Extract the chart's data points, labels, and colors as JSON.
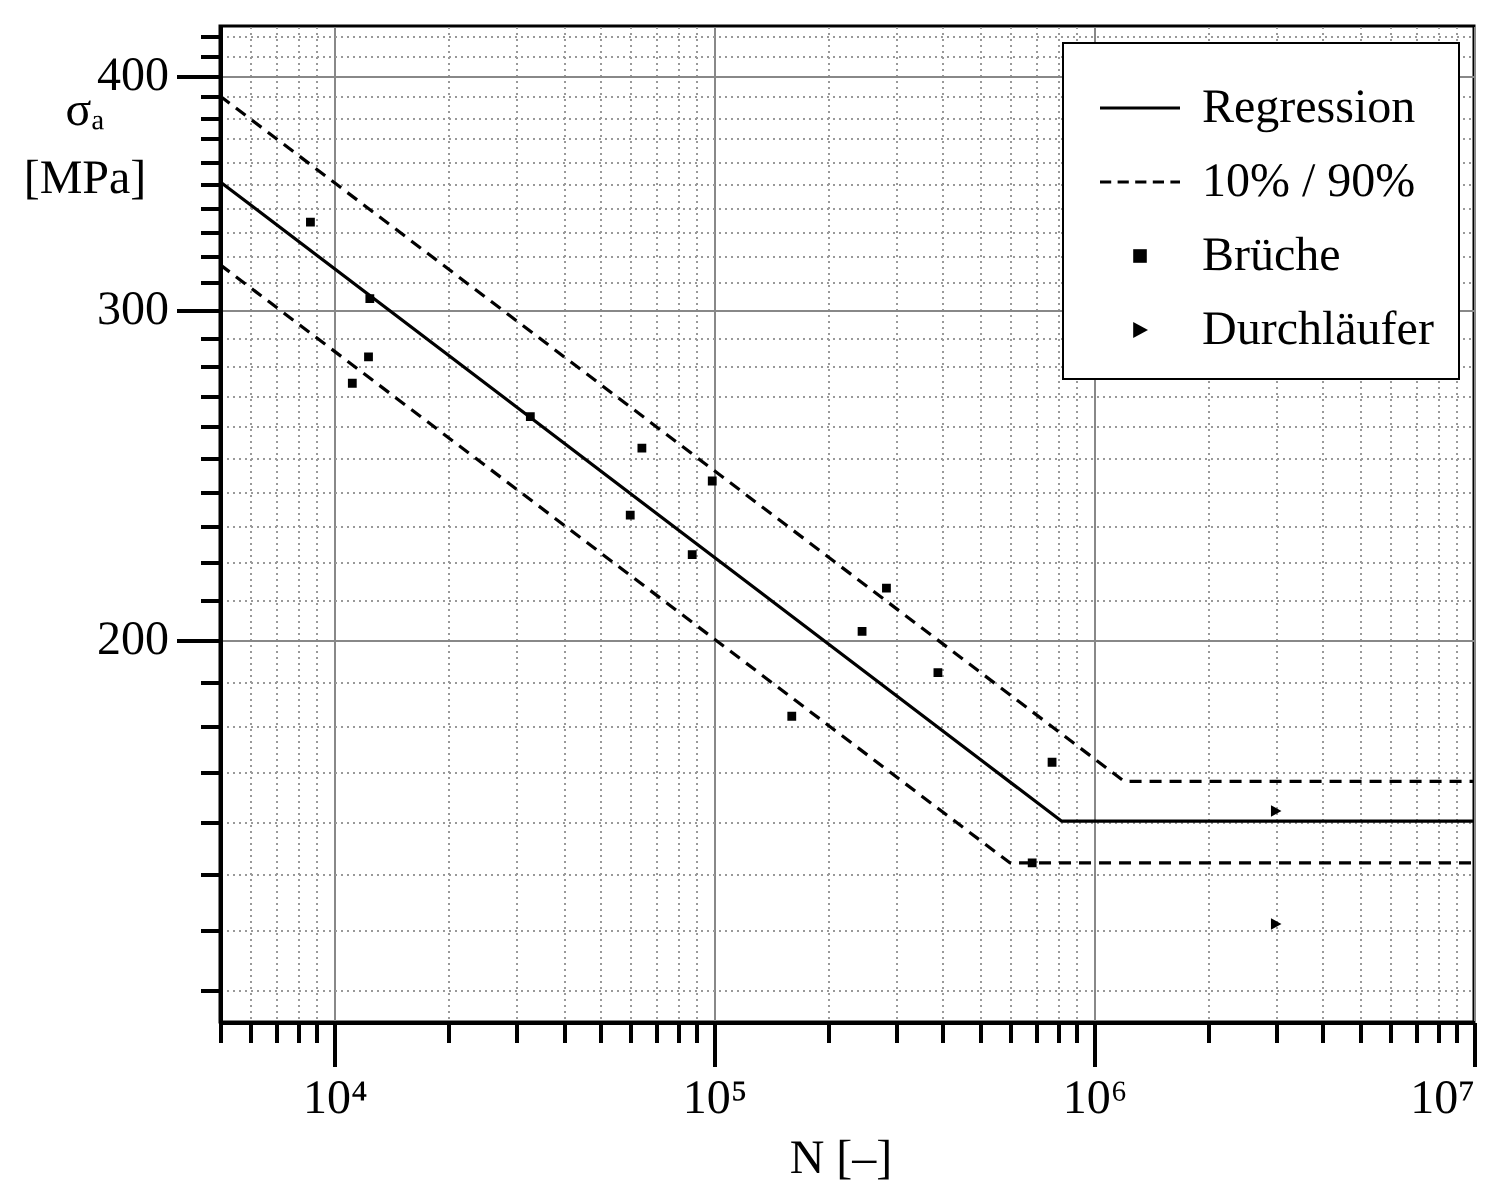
{
  "chart_data": {
    "type": "scatter",
    "xlabel": "N [–]",
    "ylabel": "σₐ\n[MPa]",
    "log": "xy",
    "grid": true,
    "legend": "top right",
    "xlim": [
      5000,
      10000000
    ],
    "ylim": [
      125,
      425
    ],
    "xticks": [
      {
        "value": 5000,
        "label": null
      },
      {
        "value": 6000,
        "label": null
      },
      {
        "value": 7000,
        "label": null
      },
      {
        "value": 8000,
        "label": null
      },
      {
        "value": 9000,
        "label": null
      },
      {
        "value": 10000,
        "label": "10⁴"
      },
      {
        "value": 20000,
        "label": null
      },
      {
        "value": 30000,
        "label": null
      },
      {
        "value": 40000,
        "label": null
      },
      {
        "value": 50000,
        "label": null
      },
      {
        "value": 60000,
        "label": null
      },
      {
        "value": 70000,
        "label": null
      },
      {
        "value": 80000,
        "label": null
      },
      {
        "value": 90000,
        "label": null
      },
      {
        "value": 100000,
        "label": "10⁵"
      },
      {
        "value": 200000,
        "label": null
      },
      {
        "value": 300000,
        "label": null
      },
      {
        "value": 400000,
        "label": null
      },
      {
        "value": 500000,
        "label": null
      },
      {
        "value": 600000,
        "label": null
      },
      {
        "value": 700000,
        "label": null
      },
      {
        "value": 800000,
        "label": null
      },
      {
        "value": 900000,
        "label": null
      },
      {
        "value": 1000000,
        "label": "10⁶"
      },
      {
        "value": 2000000,
        "label": null
      },
      {
        "value": 3000000,
        "label": null
      },
      {
        "value": 4000000,
        "label": null
      },
      {
        "value": 5000000,
        "label": null
      },
      {
        "value": 6000000,
        "label": null
      },
      {
        "value": 7000000,
        "label": null
      },
      {
        "value": 8000000,
        "label": null
      },
      {
        "value": 9000000,
        "label": null
      },
      {
        "value": 10000000,
        "label": "10⁷"
      }
    ],
    "yticks": [
      {
        "value": 130,
        "label": null
      },
      {
        "value": 140,
        "label": null
      },
      {
        "value": 150,
        "label": null
      },
      {
        "value": 160,
        "label": null
      },
      {
        "value": 170,
        "label": null
      },
      {
        "value": 180,
        "label": null
      },
      {
        "value": 190,
        "label": null
      },
      200,
      {
        "value": 210,
        "label": null
      },
      {
        "value": 220,
        "label": null
      },
      {
        "value": 230,
        "label": null
      },
      {
        "value": 240,
        "label": null
      },
      {
        "value": 250,
        "label": null
      },
      {
        "value": 260,
        "label": null
      },
      {
        "value": 270,
        "label": null
      },
      {
        "value": 280,
        "label": null
      },
      {
        "value": 290,
        "label": null
      },
      300,
      {
        "value": 310,
        "label": null
      },
      {
        "value": 320,
        "label": null
      },
      {
        "value": 330,
        "label": null
      },
      {
        "value": 340,
        "label": null
      },
      {
        "value": 350,
        "label": null
      },
      {
        "value": 360,
        "label": null
      },
      {
        "value": 370,
        "label": null
      },
      {
        "value": 380,
        "label": null
      },
      {
        "value": 390,
        "label": null
      },
      400,
      {
        "value": 410,
        "label": null
      },
      {
        "value": 420,
        "label": null
      }
    ],
    "series": [
      {
        "name": "Regression",
        "type": "line",
        "line_style": "solid",
        "color": "#000000",
        "x": [
          5000,
          820000,
          10000000
        ],
        "values": [
          351,
          160,
          160
        ]
      },
      {
        "name": "10% / 90%",
        "type": "line",
        "line_style": "dashed",
        "color": "#000000",
        "x": [
          5000,
          1200000,
          10000000
        ],
        "values": [
          390,
          168,
          168
        ]
      },
      {
        "type": "line",
        "line_style": "dashed",
        "color": "#000000",
        "x": [
          5000,
          600000,
          10000000
        ],
        "values": [
          317,
          152,
          152
        ]
      },
      {
        "name": "Brüche",
        "marker": "square",
        "color": "#000000",
        "x": [
          8650,
          12400,
          12300,
          11150,
          32800,
          64500,
          98800,
          60100,
          87500,
          284000,
          245000,
          388000,
          160000,
          775000,
          687000
        ],
        "values": [
          334,
          304,
          283,
          274,
          263,
          253,
          243,
          233,
          222,
          213,
          202,
          192,
          182,
          172,
          152
        ]
      },
      {
        "name": "Durchläufer",
        "marker": "triangle",
        "color": "#000000",
        "x": [
          3000000,
          3000000
        ],
        "values": [
          162,
          141
        ]
      }
    ]
  }
}
